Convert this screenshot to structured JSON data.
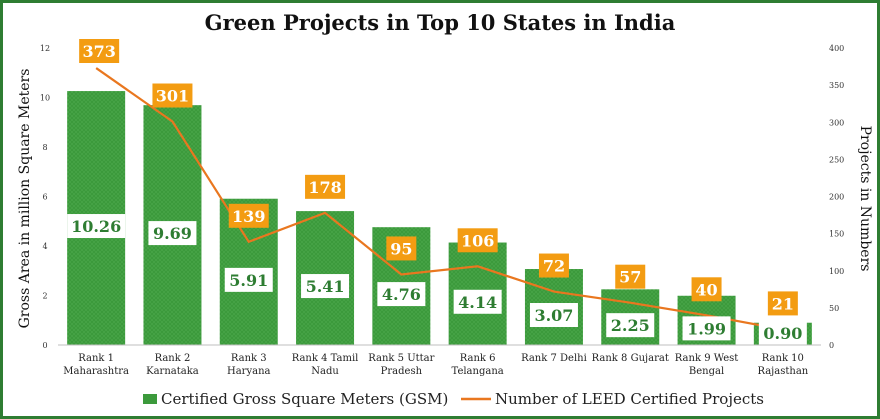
{
  "chart_data": {
    "type": "bar",
    "title": "Green Projects in Top 10 States in India",
    "categories": [
      [
        "Rank 1",
        "Maharashtra"
      ],
      [
        "Rank 2",
        "Karnataka"
      ],
      [
        "Rank 3",
        "Haryana"
      ],
      [
        "Rank 4 Tamil",
        "Nadu"
      ],
      [
        "Rank 5 Uttar",
        "Pradesh"
      ],
      [
        "Rank 6",
        "Telangana"
      ],
      [
        "Rank 7 Delhi"
      ],
      [
        "Rank 8 Gujarat"
      ],
      [
        "Rank 9 West",
        "Bengal"
      ],
      [
        "Rank 10",
        "Rajasthan"
      ]
    ],
    "series": [
      {
        "name": "Certified Gross Square Meters (GSM)",
        "type": "bar",
        "axis": "left",
        "values": [
          10.26,
          9.69,
          5.91,
          5.41,
          4.76,
          4.14,
          3.07,
          2.25,
          1.99,
          0.9
        ],
        "labels": [
          "10.26",
          "9.69",
          "5.91",
          "5.41",
          "4.76",
          "4.14",
          "3.07",
          "2.25",
          "1.99",
          "0.90"
        ],
        "color": "#3c9a3c"
      },
      {
        "name": "Number of LEED Certified Projects",
        "type": "line",
        "axis": "right",
        "values": [
          373,
          301,
          139,
          178,
          95,
          106,
          72,
          57,
          40,
          21
        ],
        "labels": [
          "373",
          "301",
          "139",
          "178",
          "95",
          "106",
          "72",
          "57",
          "40",
          "21"
        ],
        "color": "#e9771f"
      }
    ],
    "ylabel": "Gross Area in million Square Meters",
    "y2label": "Projects in Numbers",
    "ylim": [
      0,
      12
    ],
    "y2lim": [
      0,
      400
    ],
    "yticks": [
      "0",
      "2",
      "4",
      "6",
      "8",
      "10",
      "12"
    ],
    "y2ticks": [
      "0",
      "50",
      "100",
      "150",
      "200",
      "250",
      "300",
      "350",
      "400"
    ],
    "grid": false,
    "legend": "bottom",
    "label_box_color": "#f39c12"
  }
}
